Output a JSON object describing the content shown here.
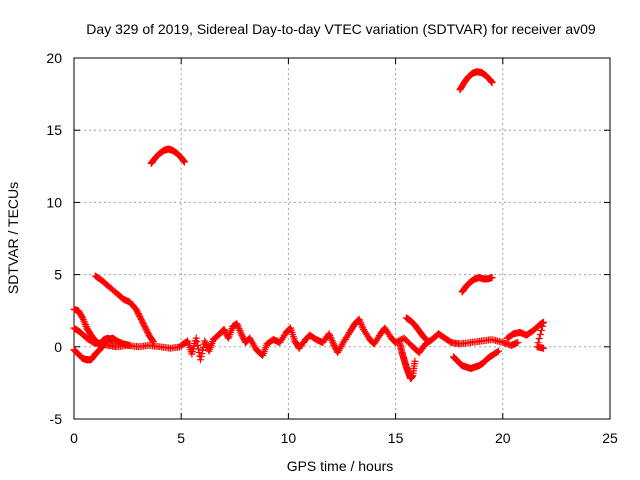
{
  "chart_data": {
    "type": "scatter",
    "title": "Day 329 of 2019, Sidereal Day-to-day VTEC variation (SDTVAR) for receiver av09",
    "xlabel": "GPS time / hours",
    "ylabel": "SDTVAR / TECUs",
    "xlim": [
      0,
      25
    ],
    "ylim": [
      -5,
      20
    ],
    "xticks": [
      "0",
      "5",
      "10",
      "15",
      "20",
      "25"
    ],
    "yticks": [
      "-5",
      "0",
      "5",
      "10",
      "15",
      "20"
    ],
    "grid": true,
    "marker_color": "#ff0000",
    "series": [
      {
        "name": "sat-high-18-19",
        "points": [
          [
            18.0,
            17.8
          ],
          [
            18.2,
            18.3
          ],
          [
            18.4,
            18.7
          ],
          [
            18.6,
            18.95
          ],
          [
            18.8,
            19.05
          ],
          [
            19.0,
            19.0
          ],
          [
            19.2,
            18.8
          ],
          [
            19.4,
            18.5
          ],
          [
            19.5,
            18.3
          ]
        ]
      },
      {
        "name": "sat-arc-3.5-5",
        "points": [
          [
            3.6,
            12.7
          ],
          [
            3.8,
            13.1
          ],
          [
            4.0,
            13.4
          ],
          [
            4.2,
            13.6
          ],
          [
            4.4,
            13.7
          ],
          [
            4.6,
            13.6
          ],
          [
            4.8,
            13.4
          ],
          [
            5.0,
            13.1
          ],
          [
            5.15,
            12.8
          ]
        ]
      },
      {
        "name": "sat-mid-18-19.5",
        "points": [
          [
            18.1,
            3.8
          ],
          [
            18.3,
            4.2
          ],
          [
            18.5,
            4.5
          ],
          [
            18.7,
            4.7
          ],
          [
            18.9,
            4.8
          ],
          [
            19.1,
            4.7
          ],
          [
            19.3,
            4.7
          ],
          [
            19.5,
            4.8
          ]
        ]
      },
      {
        "name": "sat-decay-1-3.7",
        "points": [
          [
            1.0,
            4.9
          ],
          [
            1.3,
            4.6
          ],
          [
            1.6,
            4.2
          ],
          [
            2.0,
            3.7
          ],
          [
            2.3,
            3.3
          ],
          [
            2.6,
            3.1
          ],
          [
            2.9,
            2.6
          ],
          [
            3.1,
            2.0
          ],
          [
            3.3,
            1.4
          ],
          [
            3.5,
            0.8
          ],
          [
            3.7,
            0.35
          ]
        ]
      },
      {
        "name": "sat-early-1",
        "points": [
          [
            0.0,
            2.6
          ],
          [
            0.2,
            2.5
          ],
          [
            0.4,
            2.0
          ],
          [
            0.6,
            1.3
          ],
          [
            0.8,
            0.8
          ],
          [
            1.0,
            0.4
          ],
          [
            1.2,
            0.2
          ],
          [
            1.4,
            0.5
          ],
          [
            1.6,
            0.6
          ],
          [
            1.8,
            0.4
          ]
        ]
      },
      {
        "name": "sat-early-2",
        "points": [
          [
            0.0,
            1.3
          ],
          [
            0.3,
            1.0
          ],
          [
            0.6,
            0.6
          ],
          [
            0.9,
            0.3
          ],
          [
            1.2,
            0.2
          ],
          [
            1.6,
            0.1
          ],
          [
            2.0,
            0.0
          ],
          [
            2.5,
            0.1
          ],
          [
            3.0,
            0.0
          ],
          [
            3.5,
            0.1
          ],
          [
            4.0,
            0.0
          ],
          [
            4.5,
            -0.1
          ],
          [
            5.0,
            0.0
          ]
        ]
      },
      {
        "name": "sat-early-3",
        "points": [
          [
            0.0,
            -0.2
          ],
          [
            0.2,
            -0.5
          ],
          [
            0.4,
            -0.8
          ],
          [
            0.6,
            -0.9
          ],
          [
            0.8,
            -0.9
          ],
          [
            1.0,
            -0.5
          ],
          [
            1.2,
            -0.2
          ],
          [
            1.4,
            0.2
          ],
          [
            1.6,
            0.5
          ],
          [
            1.8,
            0.6
          ],
          [
            2.0,
            0.4
          ],
          [
            2.3,
            0.2
          ],
          [
            2.6,
            0.1
          ]
        ]
      },
      {
        "name": "sat-dip-15.5",
        "points": [
          [
            15.2,
            0.2
          ],
          [
            15.3,
            -0.4
          ],
          [
            15.4,
            -0.9
          ],
          [
            15.5,
            -1.4
          ],
          [
            15.6,
            -1.8
          ],
          [
            15.7,
            -2.2
          ],
          [
            15.8,
            -2.0
          ],
          [
            15.9,
            -1.0
          ]
        ]
      },
      {
        "name": "sat-rise-15.5",
        "points": [
          [
            15.5,
            2.0
          ],
          [
            15.7,
            1.8
          ],
          [
            15.9,
            1.5
          ],
          [
            16.1,
            1.1
          ],
          [
            16.3,
            0.7
          ],
          [
            16.5,
            0.4
          ]
        ]
      },
      {
        "name": "sat-bowl-18-19.5",
        "points": [
          [
            17.7,
            -0.7
          ],
          [
            17.9,
            -1.0
          ],
          [
            18.1,
            -1.3
          ],
          [
            18.3,
            -1.4
          ],
          [
            18.5,
            -1.5
          ],
          [
            18.7,
            -1.4
          ],
          [
            18.9,
            -1.3
          ],
          [
            19.1,
            -1.1
          ],
          [
            19.3,
            -0.8
          ],
          [
            19.5,
            -0.6
          ],
          [
            19.8,
            -0.3
          ]
        ]
      },
      {
        "name": "sat-tail-21-22",
        "points": [
          [
            20.2,
            0.6
          ],
          [
            20.5,
            0.9
          ],
          [
            20.8,
            1.0
          ],
          [
            21.1,
            0.8
          ],
          [
            21.4,
            1.1
          ],
          [
            21.7,
            1.5
          ],
          [
            21.9,
            1.7
          ],
          [
            21.6,
            0.0
          ],
          [
            21.9,
            -0.1
          ]
        ]
      },
      {
        "name": "sat-noise-band",
        "points": [
          [
            5.0,
            0.1
          ],
          [
            5.3,
            0.4
          ],
          [
            5.5,
            -0.5
          ],
          [
            5.7,
            0.6
          ],
          [
            5.9,
            -0.9
          ],
          [
            6.1,
            0.4
          ],
          [
            6.3,
            -0.3
          ],
          [
            6.5,
            0.5
          ],
          [
            6.8,
            0.9
          ],
          [
            7.0,
            1.2
          ],
          [
            7.2,
            0.6
          ],
          [
            7.4,
            1.4
          ],
          [
            7.6,
            1.6
          ],
          [
            7.8,
            0.9
          ],
          [
            8.0,
            0.3
          ],
          [
            8.2,
            0.6
          ],
          [
            8.5,
            -0.2
          ],
          [
            8.8,
            -0.6
          ],
          [
            9.0,
            0.2
          ],
          [
            9.3,
            0.5
          ],
          [
            9.6,
            0.3
          ],
          [
            9.9,
            1.0
          ],
          [
            10.1,
            1.3
          ],
          [
            10.3,
            0.4
          ],
          [
            10.5,
            -0.1
          ],
          [
            10.8,
            0.5
          ],
          [
            11.0,
            0.8
          ],
          [
            11.3,
            0.5
          ],
          [
            11.6,
            0.3
          ],
          [
            11.9,
            0.9
          ],
          [
            12.1,
            0.2
          ],
          [
            12.3,
            -0.4
          ],
          [
            12.6,
            0.4
          ],
          [
            12.9,
            1.1
          ],
          [
            13.1,
            1.6
          ],
          [
            13.3,
            1.9
          ],
          [
            13.5,
            1.2
          ],
          [
            13.8,
            0.5
          ],
          [
            14.0,
            0.2
          ],
          [
            14.3,
            0.9
          ],
          [
            14.5,
            1.3
          ],
          [
            14.8,
            0.6
          ],
          [
            15.0,
            0.3
          ],
          [
            15.4,
            0.6
          ],
          [
            15.8,
            0.0
          ],
          [
            16.1,
            -0.4
          ],
          [
            16.4,
            0.2
          ],
          [
            16.7,
            0.5
          ],
          [
            17.0,
            0.9
          ],
          [
            17.3,
            0.6
          ],
          [
            17.6,
            0.3
          ],
          [
            18.0,
            0.2
          ],
          [
            18.5,
            0.3
          ],
          [
            19.0,
            0.4
          ],
          [
            19.5,
            0.5
          ],
          [
            20.0,
            0.3
          ],
          [
            20.4,
            0.1
          ],
          [
            20.7,
            0.3
          ]
        ]
      }
    ]
  }
}
